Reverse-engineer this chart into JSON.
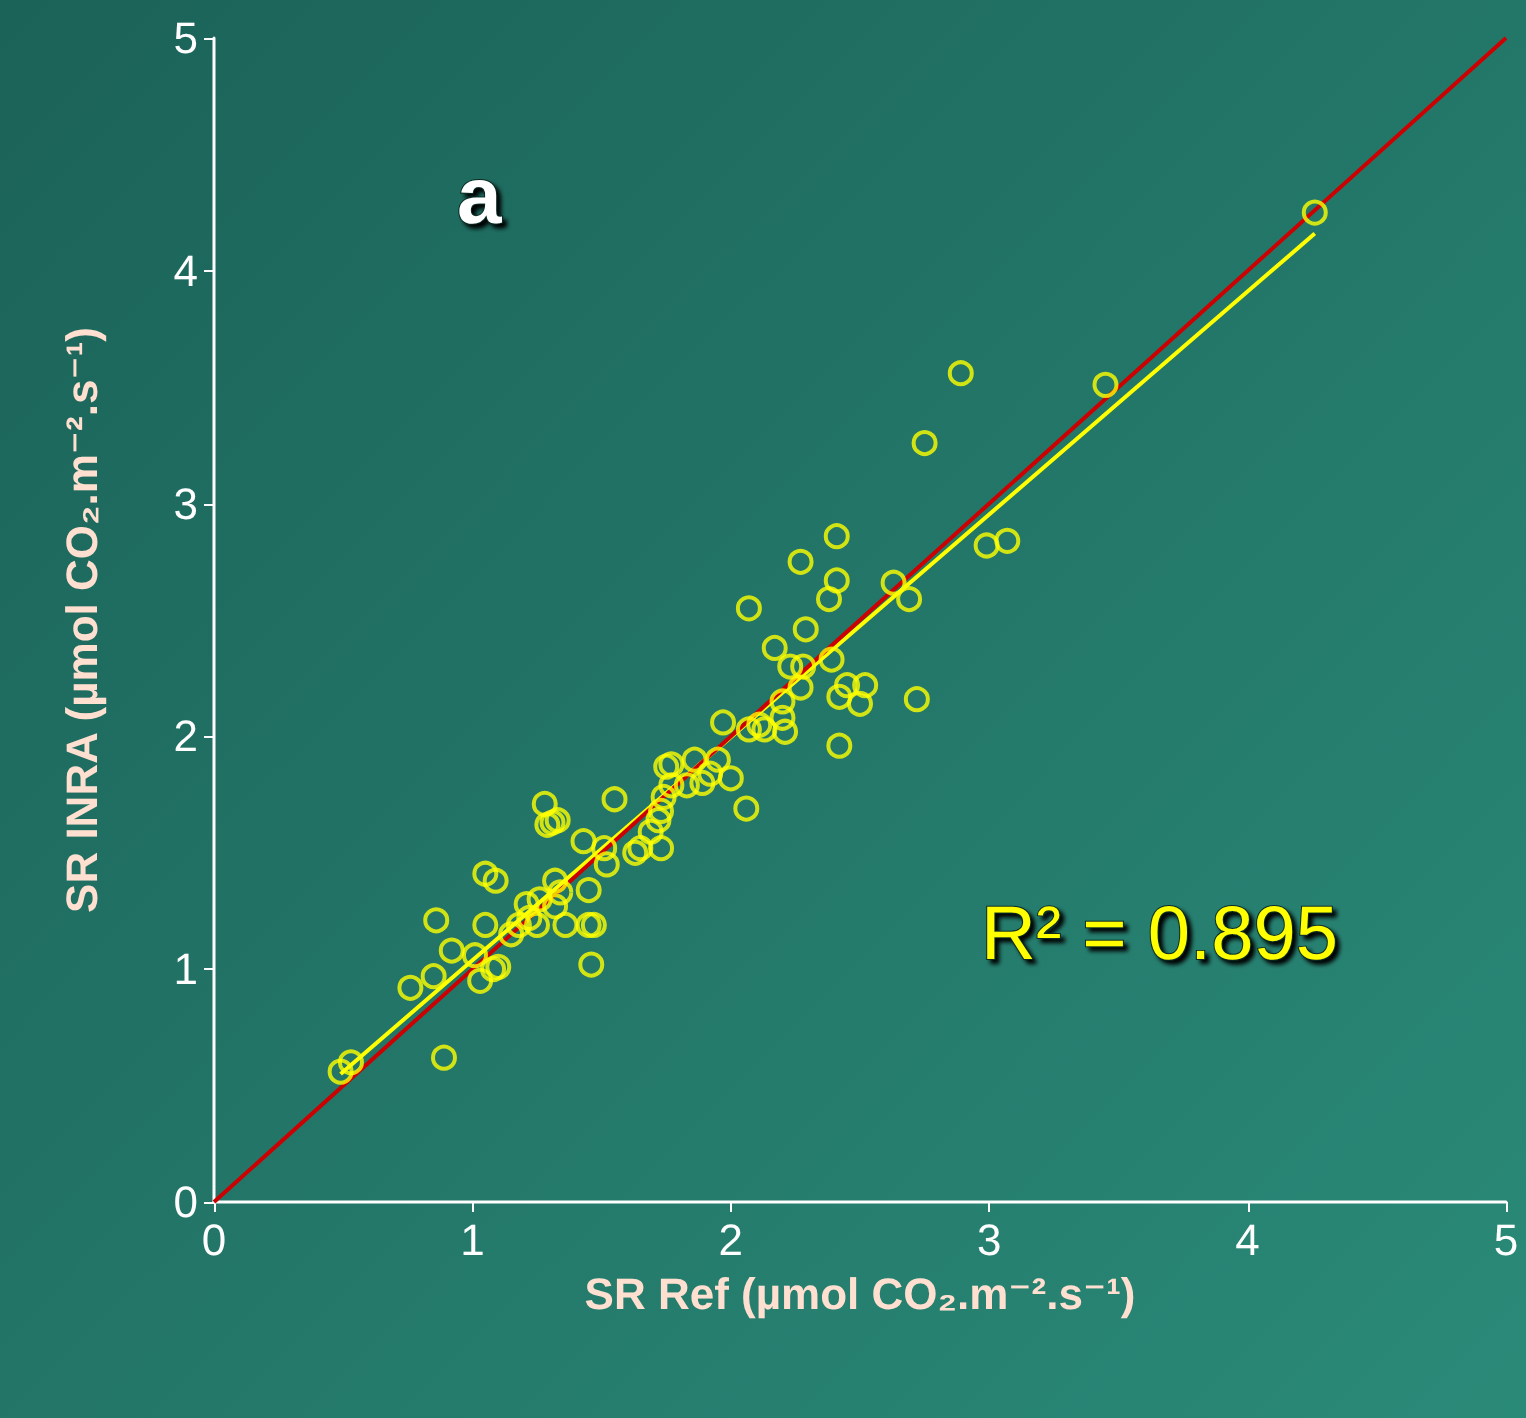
{
  "chart_data": {
    "type": "scatter",
    "xlabel": "SR Ref (µmol CO₂.m⁻².s⁻¹)",
    "ylabel": "SR INRA (µmol CO₂.m⁻².s⁻¹)",
    "xlim": [
      0,
      5
    ],
    "ylim": [
      0,
      5
    ],
    "xticks": [
      0,
      1,
      2,
      3,
      4,
      5
    ],
    "yticks": [
      0,
      1,
      2,
      3,
      4,
      5
    ],
    "grid": false,
    "marker": "circle",
    "annotations": [
      "a",
      "R² = 0.895"
    ],
    "series": [
      {
        "color": "#ffff00",
        "x": [
          0.49,
          0.53,
          0.76,
          0.85,
          0.89,
          0.92,
          0.86,
          1.01,
          1.05,
          1.03,
          1.05,
          1.09,
          1.08,
          1.1,
          1.15,
          1.18,
          1.22,
          1.21,
          1.25,
          1.26,
          1.28,
          1.31,
          1.29,
          1.33,
          1.32,
          1.34,
          1.32,
          1.36,
          1.43,
          1.45,
          1.46,
          1.47,
          1.45,
          1.51,
          1.52,
          1.55,
          1.63,
          1.65,
          1.69,
          1.72,
          1.73,
          1.74,
          1.77,
          1.73,
          1.75,
          1.77,
          1.86,
          1.83,
          1.89,
          1.92,
          1.95,
          1.97,
          2.0,
          2.07,
          2.06,
          2.07,
          2.11,
          2.13,
          2.17,
          2.2,
          2.2,
          2.21,
          2.23,
          2.27,
          2.27,
          2.28,
          2.29,
          2.38,
          2.41,
          2.39,
          2.41,
          2.42,
          2.42,
          2.45,
          2.5,
          2.52,
          2.63,
          2.69,
          2.72,
          2.75,
          2.89,
          2.99,
          3.07,
          3.45,
          4.26
        ],
        "values": [
          0.56,
          0.6,
          0.92,
          0.97,
          0.62,
          1.08,
          1.21,
          1.06,
          1.19,
          0.95,
          1.41,
          1.38,
          1.0,
          1.01,
          1.15,
          1.19,
          1.22,
          1.28,
          1.19,
          1.3,
          1.71,
          1.63,
          1.62,
          1.64,
          1.38,
          1.33,
          1.27,
          1.19,
          1.55,
          1.19,
          1.02,
          1.19,
          1.34,
          1.52,
          1.45,
          1.73,
          1.5,
          1.52,
          1.59,
          1.64,
          1.68,
          1.74,
          1.79,
          1.52,
          1.87,
          1.88,
          1.9,
          1.79,
          1.8,
          1.84,
          1.9,
          2.06,
          1.82,
          2.55,
          1.69,
          2.03,
          2.05,
          2.03,
          2.38,
          2.15,
          2.08,
          2.02,
          2.3,
          2.75,
          2.21,
          2.3,
          2.46,
          2.59,
          2.67,
          2.33,
          2.86,
          1.96,
          2.17,
          2.22,
          2.14,
          2.22,
          2.66,
          2.59,
          2.16,
          3.26,
          3.56,
          2.82,
          2.84,
          3.51,
          4.25
        ]
      },
      {
        "type": "line",
        "color": "#ffff00",
        "marker": "none",
        "line_style": "solid",
        "x": [
          0.49,
          4.26
        ],
        "values": [
          0.55,
          4.16
        ]
      },
      {
        "type": "line",
        "color": "#cc0000",
        "marker": "none",
        "line_style": "solid",
        "x": [
          0,
          5
        ],
        "values": [
          0,
          5
        ]
      }
    ]
  }
}
